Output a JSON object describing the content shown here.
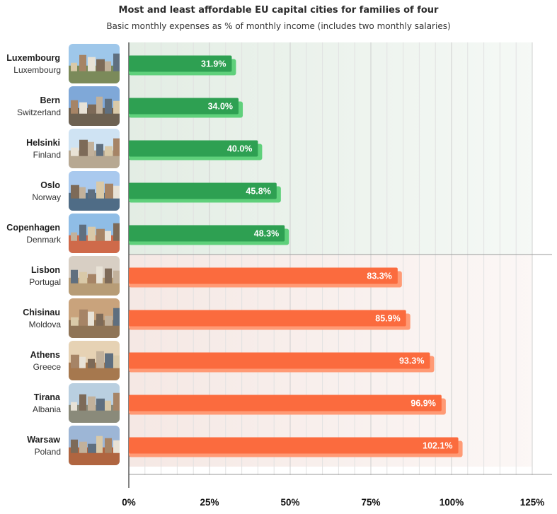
{
  "colors": {
    "affordable_bar": "#2ea052",
    "affordable_bar_shadow": "#5fd07b",
    "affordable_bg": "#e3ede4",
    "expensive_bar": "#fb6b3e",
    "expensive_bar_shadow": "#ff9a75",
    "expensive_bg": "#f5e8e4"
  },
  "chart_data": {
    "type": "bar",
    "orientation": "horizontal",
    "title": "Most and least affordable EU capital cities for families of four",
    "subtitle": "Basic monthly expenses as % of monthly income (includes two monthly salaries)",
    "xlim": [
      0,
      125
    ],
    "x_ticks": [
      0,
      25,
      50,
      75,
      100,
      125
    ],
    "x_tick_labels": [
      "0%",
      "25%",
      "50%",
      "75%",
      "100%",
      "125%"
    ],
    "grid": true,
    "categories": [
      {
        "city": "Luxembourg",
        "country": "Luxembourg",
        "value": 31.9,
        "label": "31.9%",
        "group": "most affordable"
      },
      {
        "city": "Bern",
        "country": "Switzerland",
        "value": 34.0,
        "label": "34.0%",
        "group": "most affordable"
      },
      {
        "city": "Helsinki",
        "country": "Finland",
        "value": 40.0,
        "label": "40.0%",
        "group": "most affordable"
      },
      {
        "city": "Oslo",
        "country": "Norway",
        "value": 45.8,
        "label": "45.8%",
        "group": "most affordable"
      },
      {
        "city": "Copenhagen",
        "country": "Denmark",
        "value": 48.3,
        "label": "48.3%",
        "group": "most affordable"
      },
      {
        "city": "Lisbon",
        "country": "Portugal",
        "value": 83.3,
        "label": "83.3%",
        "group": "least affordable"
      },
      {
        "city": "Chisinau",
        "country": "Moldova",
        "value": 85.9,
        "label": "85.9%",
        "group": "least affordable"
      },
      {
        "city": "Athens",
        "country": "Greece",
        "value": 93.3,
        "label": "93.3%",
        "group": "least affordable"
      },
      {
        "city": "Tirana",
        "country": "Albania",
        "value": 96.9,
        "label": "96.9%",
        "group": "least affordable"
      },
      {
        "city": "Warsaw",
        "country": "Poland",
        "value": 102.1,
        "label": "102.1%",
        "group": "least affordable"
      }
    ]
  }
}
